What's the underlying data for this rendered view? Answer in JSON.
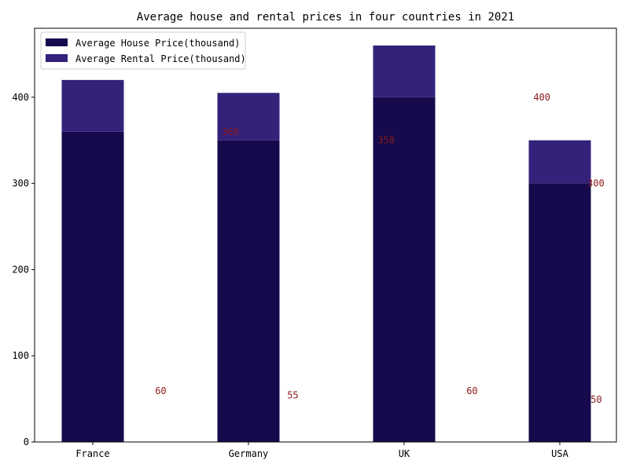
{
  "chart_data": {
    "type": "bar",
    "stacked": true,
    "title": "Average house and rental prices in four countries in 2021",
    "xlabel": "",
    "ylabel": "",
    "categories": [
      "France",
      "Germany",
      "UK",
      "USA"
    ],
    "series": [
      {
        "name": "Average House Price(thousand)",
        "values": [
          360,
          350,
          400,
          300
        ],
        "color": "#160a4c"
      },
      {
        "name": "Average Rental Price(thousand)",
        "values": [
          60,
          55,
          60,
          50
        ],
        "color": "#33217a"
      }
    ],
    "annotation_color": "#8b1a1a",
    "yticks": [
      0,
      100,
      200,
      300,
      400
    ],
    "ylim": [
      0,
      480
    ],
    "grid": false,
    "legend_position": "upper-left"
  }
}
